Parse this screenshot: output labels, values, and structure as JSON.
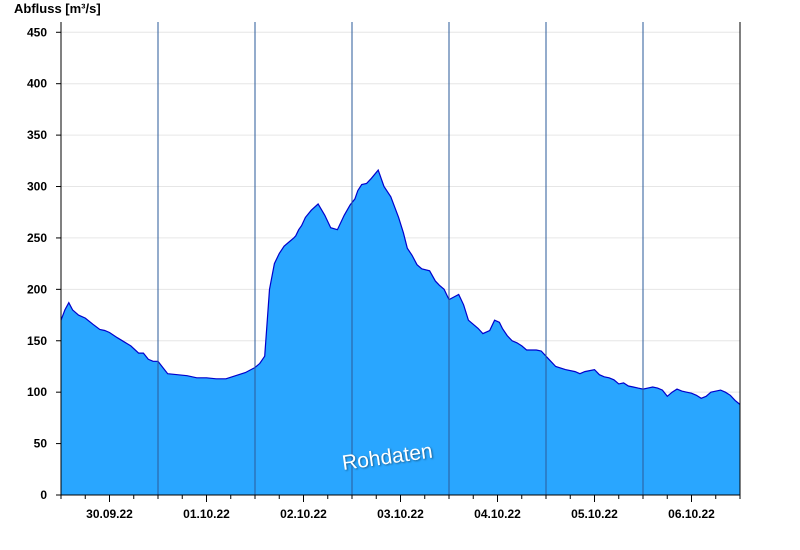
{
  "chart_data": {
    "type": "area",
    "ylabel": "Abfluss [m³/s]",
    "ylim": [
      0,
      460
    ],
    "yticks": [
      0,
      50,
      100,
      150,
      200,
      250,
      300,
      350,
      400,
      450
    ],
    "x_unit": "days since 2022-09-29 12:00 (tick labels at day midpoints)",
    "x_range": [
      0,
      7
    ],
    "day_boundaries": [
      1,
      2,
      3,
      4,
      5,
      6
    ],
    "day_labels": [
      "30.09.22",
      "01.10.22",
      "02.10.22",
      "03.10.22",
      "04.10.22",
      "05.10.22",
      "06.10.22"
    ],
    "watermark": "Rohdaten",
    "fill_color": "#29a6ff",
    "line_color": "#0000cc",
    "series": [
      {
        "name": "Abfluss",
        "x": [
          0,
          0.04,
          0.08,
          0.12,
          0.18,
          0.25,
          0.33,
          0.4,
          0.45,
          0.5,
          0.58,
          0.65,
          0.72,
          0.8,
          0.85,
          0.9,
          0.95,
          1.0,
          1.05,
          1.1,
          1.2,
          1.3,
          1.4,
          1.5,
          1.6,
          1.7,
          1.8,
          1.9,
          2.0,
          2.05,
          2.1,
          2.15,
          2.2,
          2.25,
          2.3,
          2.35,
          2.4,
          2.42,
          2.45,
          2.48,
          2.52,
          2.58,
          2.65,
          2.72,
          2.78,
          2.85,
          2.92,
          2.98,
          3.03,
          3.06,
          3.1,
          3.15,
          3.2,
          3.27,
          3.33,
          3.4,
          3.48,
          3.53,
          3.57,
          3.62,
          3.67,
          3.72,
          3.8,
          3.86,
          3.9,
          3.95,
          4.0,
          4.1,
          4.15,
          4.2,
          4.3,
          4.35,
          4.42,
          4.47,
          4.52,
          4.55,
          4.6,
          4.65,
          4.7,
          4.75,
          4.8,
          4.9,
          4.95,
          5.0,
          5.05,
          5.1,
          5.2,
          5.3,
          5.35,
          5.4,
          5.5,
          5.55,
          5.6,
          5.65,
          5.7,
          5.75,
          5.8,
          5.85,
          5.9,
          5.95,
          6.0,
          6.05,
          6.1,
          6.15,
          6.2,
          6.25,
          6.3,
          6.35,
          6.4,
          6.45,
          6.5,
          6.55,
          6.6,
          6.65,
          6.7,
          6.8,
          6.85,
          6.9,
          6.95,
          7.0
        ],
        "values": [
          170,
          180,
          187,
          180,
          175,
          172,
          166,
          161,
          160,
          158,
          153,
          149,
          145,
          138,
          138,
          132,
          130,
          130,
          124,
          118,
          117,
          116,
          114,
          114,
          113,
          113,
          116,
          119,
          124,
          128,
          135,
          200,
          225,
          235,
          242,
          246,
          250,
          252,
          258,
          262,
          270,
          277,
          283,
          272,
          260,
          258,
          272,
          282,
          288,
          296,
          302,
          303,
          308,
          316,
          300,
          290,
          270,
          255,
          240,
          233,
          224,
          220,
          218,
          208,
          204,
          200,
          190,
          195,
          185,
          170,
          162,
          157,
          160,
          170,
          168,
          162,
          155,
          150,
          148,
          145,
          141,
          141,
          140,
          135,
          130,
          125,
          122,
          120,
          118,
          120,
          122,
          117,
          115,
          114,
          112,
          108,
          109,
          106,
          105,
          104,
          103,
          104,
          105,
          104,
          102,
          96,
          100,
          103,
          101,
          100,
          99,
          97,
          94,
          96,
          100,
          102,
          100,
          97,
          92,
          88
        ]
      }
    ]
  }
}
